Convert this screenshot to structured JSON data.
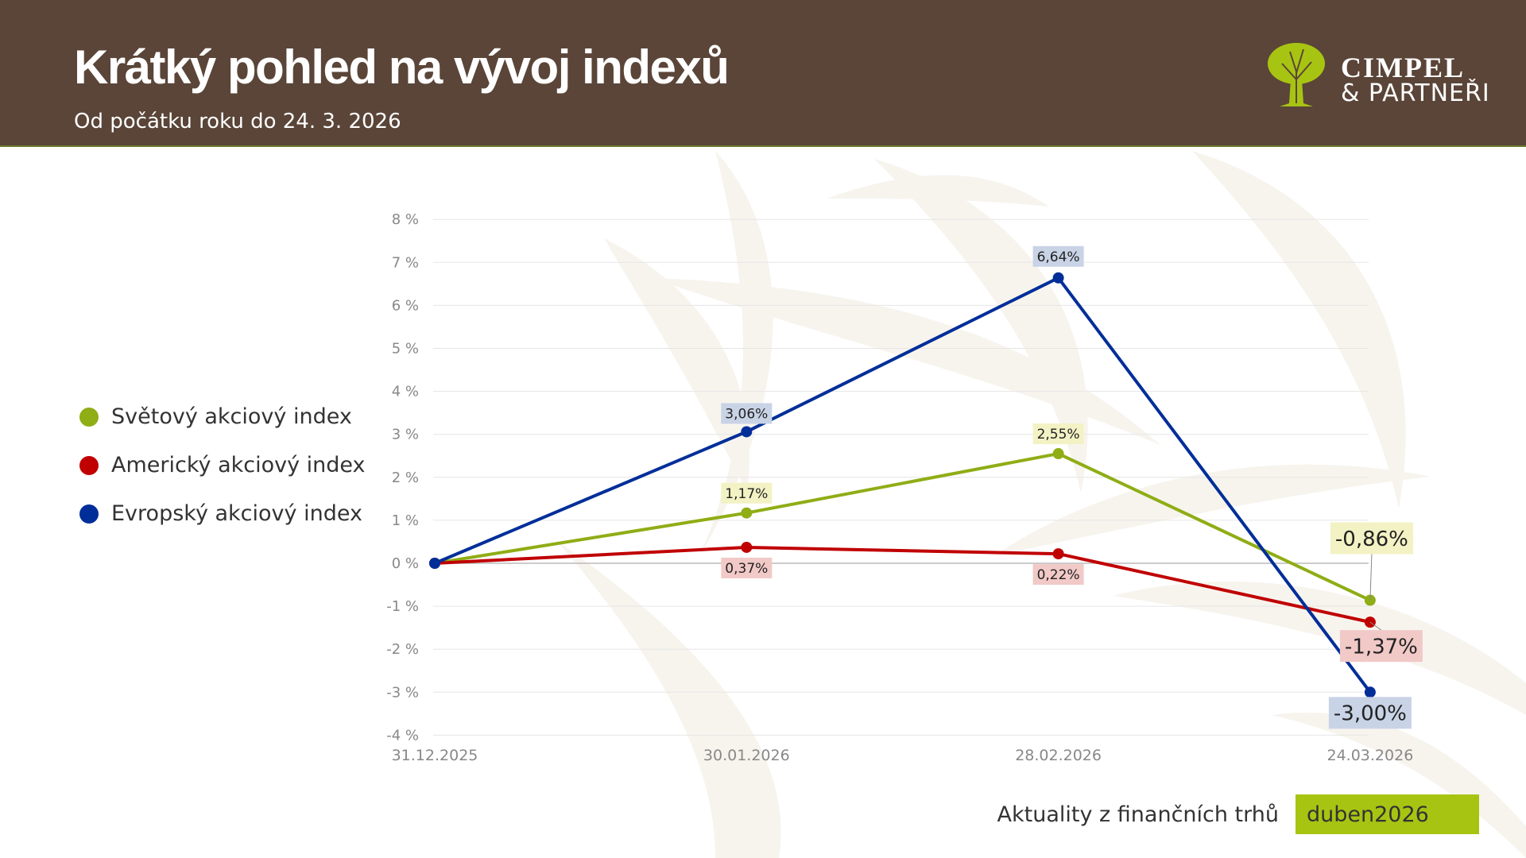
{
  "header": {
    "title": "Krátký pohled na vývoj indexů",
    "subtitle": "Od počátku roku do 24. 3. 2026",
    "logo_line1": "CIMPEL",
    "logo_line2": "& PARTNEŘI"
  },
  "footer": {
    "text": "Aktuality z finančních trhů",
    "badge": "duben2026"
  },
  "colors": {
    "header": "#5a4538",
    "green": "#8fad15",
    "red": "#c00000",
    "blue": "#002e99",
    "badge": "#a8c412"
  },
  "chart_data": {
    "type": "line",
    "categories": [
      "31.12.2025",
      "30.01.2026",
      "28.02.2026",
      "24.03.2026"
    ],
    "ylim": [
      -4,
      8
    ],
    "yticks": [
      "8 %",
      "7 %",
      "6 %",
      "5 %",
      "4 %",
      "3 %",
      "2 %",
      "1 %",
      "0 %",
      "-1 %",
      "-2 %",
      "-3 %",
      "-4 %"
    ],
    "ytick_values": [
      8,
      7,
      6,
      5,
      4,
      3,
      2,
      1,
      0,
      -1,
      -2,
      -3,
      -4
    ],
    "grid": true,
    "legend": "left",
    "series": [
      {
        "name": "Světový akciový index",
        "color": "#8fad15",
        "label_bg": "#f3f2c4",
        "values": [
          0,
          1.17,
          2.55,
          -0.86
        ],
        "labels": [
          "",
          "1,17%",
          "2,55%",
          "-0,86%"
        ]
      },
      {
        "name": "Americký akciový index",
        "color": "#c00000",
        "label_bg": "#f1c9c7",
        "values": [
          0,
          0.37,
          0.22,
          -1.37
        ],
        "labels": [
          "",
          "0,37%",
          "0,22%",
          "-1,37%"
        ]
      },
      {
        "name": "Evropský akciový index",
        "color": "#002e99",
        "label_bg": "#c9d3e6",
        "values": [
          0,
          3.06,
          6.64,
          -3.0
        ],
        "labels": [
          "",
          "3,06%",
          "6,64%",
          "-3,00%"
        ]
      }
    ]
  }
}
